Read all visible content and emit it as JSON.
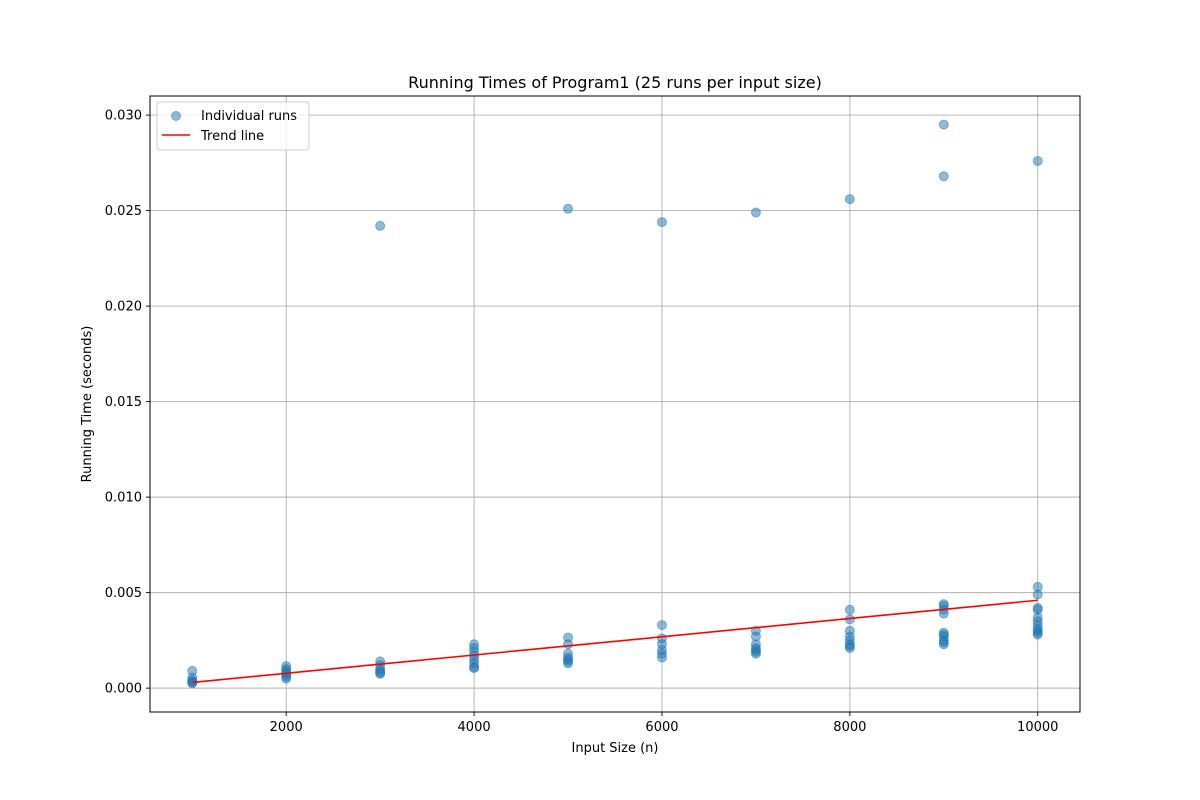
{
  "chart_data": {
    "type": "scatter",
    "title": "Running Times of Program1 (25 runs per input size)",
    "xlabel": "Input Size (n)",
    "ylabel": "Running Time (seconds)",
    "xlim": [
      550,
      10450
    ],
    "ylim": [
      -0.00125,
      0.031
    ],
    "xticks": [
      2000,
      4000,
      6000,
      8000,
      10000
    ],
    "xtick_labels": [
      "2000",
      "4000",
      "6000",
      "8000",
      "10000"
    ],
    "yticks": [
      0.0,
      0.005,
      0.01,
      0.015,
      0.02,
      0.025,
      0.03
    ],
    "ytick_labels": [
      "0.000",
      "0.005",
      "0.010",
      "0.015",
      "0.020",
      "0.025",
      "0.030"
    ],
    "grid": true,
    "legend_position": "top-left",
    "series": [
      {
        "name": "Individual runs",
        "kind": "scatter",
        "color": "#1f77b4",
        "points": [
          [
            1000,
            0.0009
          ],
          [
            1000,
            0.00055
          ],
          [
            1000,
            0.0004
          ],
          [
            1000,
            0.00035
          ],
          [
            1000,
            0.0003
          ],
          [
            1000,
            0.00025
          ],
          [
            2000,
            0.00115
          ],
          [
            2000,
            0.001
          ],
          [
            2000,
            0.0009
          ],
          [
            2000,
            0.0008
          ],
          [
            2000,
            0.0007
          ],
          [
            2000,
            0.0006
          ],
          [
            2000,
            0.0005
          ],
          [
            3000,
            0.0242
          ],
          [
            3000,
            0.0014
          ],
          [
            3000,
            0.0012
          ],
          [
            3000,
            0.001
          ],
          [
            3000,
            0.0009
          ],
          [
            3000,
            0.0008
          ],
          [
            3000,
            0.00075
          ],
          [
            4000,
            0.0023
          ],
          [
            4000,
            0.0021
          ],
          [
            4000,
            0.0019
          ],
          [
            4000,
            0.0017
          ],
          [
            4000,
            0.0015
          ],
          [
            4000,
            0.0013
          ],
          [
            4000,
            0.0011
          ],
          [
            4000,
            0.00105
          ],
          [
            5000,
            0.0251
          ],
          [
            5000,
            0.00265
          ],
          [
            5000,
            0.0023
          ],
          [
            5000,
            0.0018
          ],
          [
            5000,
            0.0016
          ],
          [
            5000,
            0.0015
          ],
          [
            5000,
            0.0014
          ],
          [
            5000,
            0.0013
          ],
          [
            6000,
            0.0244
          ],
          [
            6000,
            0.0033
          ],
          [
            6000,
            0.0026
          ],
          [
            6000,
            0.0023
          ],
          [
            6000,
            0.002
          ],
          [
            6000,
            0.0018
          ],
          [
            6000,
            0.0016
          ],
          [
            7000,
            0.0249
          ],
          [
            7000,
            0.003
          ],
          [
            7000,
            0.0027
          ],
          [
            7000,
            0.0023
          ],
          [
            7000,
            0.0021
          ],
          [
            7000,
            0.002
          ],
          [
            7000,
            0.0019
          ],
          [
            7000,
            0.0018
          ],
          [
            8000,
            0.0256
          ],
          [
            8000,
            0.0041
          ],
          [
            8000,
            0.0036
          ],
          [
            8000,
            0.003
          ],
          [
            8000,
            0.0027
          ],
          [
            8000,
            0.0025
          ],
          [
            8000,
            0.0023
          ],
          [
            8000,
            0.0022
          ],
          [
            8000,
            0.0021
          ],
          [
            9000,
            0.0295
          ],
          [
            9000,
            0.0268
          ],
          [
            9000,
            0.0044
          ],
          [
            9000,
            0.0043
          ],
          [
            9000,
            0.0041
          ],
          [
            9000,
            0.0039
          ],
          [
            9000,
            0.0029
          ],
          [
            9000,
            0.0028
          ],
          [
            9000,
            0.0027
          ],
          [
            9000,
            0.0025
          ],
          [
            9000,
            0.0024
          ],
          [
            9000,
            0.0023
          ],
          [
            10000,
            0.0276
          ],
          [
            10000,
            0.0053
          ],
          [
            10000,
            0.0049
          ],
          [
            10000,
            0.0042
          ],
          [
            10000,
            0.0041
          ],
          [
            10000,
            0.0037
          ],
          [
            10000,
            0.0035
          ],
          [
            10000,
            0.0033
          ],
          [
            10000,
            0.0031
          ],
          [
            10000,
            0.003
          ],
          [
            10000,
            0.0029
          ],
          [
            10000,
            0.0028
          ]
        ]
      },
      {
        "name": "Trend line",
        "kind": "line",
        "color": "#ff0000",
        "points": [
          [
            1000,
            0.0003
          ],
          [
            10000,
            0.0046
          ]
        ]
      }
    ]
  }
}
